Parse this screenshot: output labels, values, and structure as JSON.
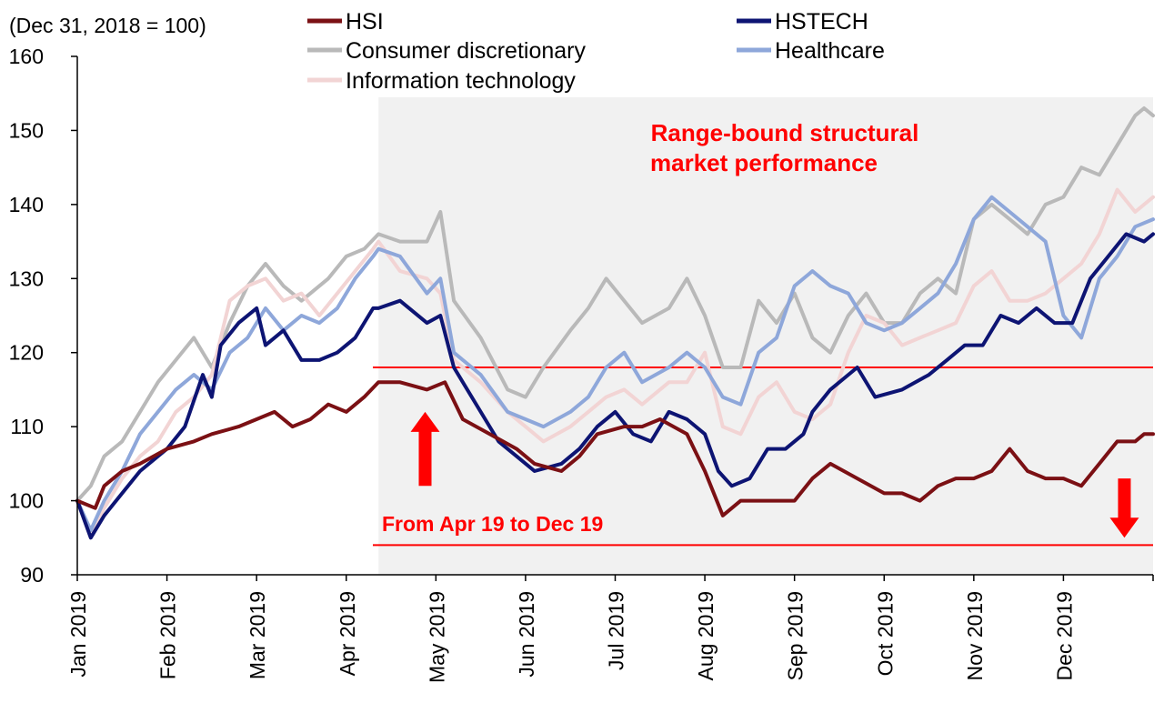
{
  "chart_data": {
    "type": "line",
    "unit_label": "(Dec 31, 2018 = 100)",
    "ylim": [
      90,
      160
    ],
    "y_ticks": [
      90,
      100,
      110,
      120,
      130,
      140,
      150,
      160
    ],
    "x_ticks": [
      "Jan 2019",
      "Feb 2019",
      "Mar 2019",
      "Apr 2019",
      "May 2019",
      "Jun 2019",
      "Jul 2019",
      "Aug 2019",
      "Sep 2019",
      "Oct 2019",
      "Nov 2019",
      "Dec 2019"
    ],
    "x_range": [
      0,
      12
    ],
    "grid": false,
    "legend": "top",
    "shaded_period": {
      "start": 3.36,
      "end": 12
    },
    "range_lines": [
      118,
      94
    ],
    "annotations": {
      "range_title": [
        "Range-bound structural",
        "market performance"
      ],
      "period": "From Apr 19 to Dec 19"
    },
    "arrows": [
      {
        "direction": "up",
        "x": 3.88,
        "y_from": 102,
        "y_to": 112
      },
      {
        "direction": "down",
        "x": 11.68,
        "y_from": 103,
        "y_to": 95
      }
    ],
    "series": [
      {
        "name": "HSI",
        "color": "#7b1014",
        "values": [
          [
            0,
            100
          ],
          [
            0.2,
            99
          ],
          [
            0.3,
            102
          ],
          [
            0.5,
            104
          ],
          [
            0.7,
            105
          ],
          [
            1,
            107
          ],
          [
            1.3,
            108
          ],
          [
            1.5,
            109
          ],
          [
            1.8,
            110
          ],
          [
            2,
            111
          ],
          [
            2.2,
            112
          ],
          [
            2.4,
            110
          ],
          [
            2.6,
            111
          ],
          [
            2.8,
            113
          ],
          [
            3,
            112
          ],
          [
            3.2,
            114
          ],
          [
            3.36,
            116
          ],
          [
            3.6,
            116
          ],
          [
            3.9,
            115
          ],
          [
            4.1,
            116
          ],
          [
            4.3,
            111
          ],
          [
            4.6,
            109
          ],
          [
            4.9,
            107
          ],
          [
            5.1,
            105
          ],
          [
            5.4,
            104
          ],
          [
            5.6,
            106
          ],
          [
            5.8,
            109
          ],
          [
            6.1,
            110
          ],
          [
            6.3,
            110
          ],
          [
            6.5,
            111
          ],
          [
            6.8,
            109
          ],
          [
            7,
            104
          ],
          [
            7.2,
            98
          ],
          [
            7.4,
            100
          ],
          [
            7.7,
            100
          ],
          [
            8,
            100
          ],
          [
            8.2,
            103
          ],
          [
            8.4,
            105
          ],
          [
            8.7,
            103
          ],
          [
            9,
            101
          ],
          [
            9.2,
            101
          ],
          [
            9.4,
            100
          ],
          [
            9.6,
            102
          ],
          [
            9.8,
            103
          ],
          [
            10,
            103
          ],
          [
            10.2,
            104
          ],
          [
            10.4,
            107
          ],
          [
            10.6,
            104
          ],
          [
            10.8,
            103
          ],
          [
            11,
            103
          ],
          [
            11.2,
            102
          ],
          [
            11.4,
            105
          ],
          [
            11.6,
            108
          ],
          [
            11.8,
            108
          ],
          [
            11.9,
            109
          ],
          [
            12,
            109
          ]
        ]
      },
      {
        "name": "HSTECH",
        "color": "#0d1473",
        "values": [
          [
            0,
            100
          ],
          [
            0.15,
            95
          ],
          [
            0.3,
            98
          ],
          [
            0.5,
            101
          ],
          [
            0.7,
            104
          ],
          [
            0.9,
            106
          ],
          [
            1,
            107
          ],
          [
            1.2,
            110
          ],
          [
            1.4,
            117
          ],
          [
            1.5,
            114
          ],
          [
            1.6,
            121
          ],
          [
            1.8,
            124
          ],
          [
            2,
            126
          ],
          [
            2.1,
            121
          ],
          [
            2.3,
            123
          ],
          [
            2.5,
            119
          ],
          [
            2.7,
            119
          ],
          [
            2.9,
            120
          ],
          [
            3.1,
            122
          ],
          [
            3.3,
            126
          ],
          [
            3.36,
            126
          ],
          [
            3.6,
            127
          ],
          [
            3.9,
            124
          ],
          [
            4.05,
            125
          ],
          [
            4.2,
            118
          ],
          [
            4.4,
            114
          ],
          [
            4.7,
            108
          ],
          [
            4.9,
            106
          ],
          [
            5.1,
            104
          ],
          [
            5.4,
            105
          ],
          [
            5.6,
            107
          ],
          [
            5.8,
            110
          ],
          [
            6,
            112
          ],
          [
            6.2,
            109
          ],
          [
            6.4,
            108
          ],
          [
            6.6,
            112
          ],
          [
            6.8,
            111
          ],
          [
            7,
            109
          ],
          [
            7.15,
            104
          ],
          [
            7.3,
            102
          ],
          [
            7.5,
            103
          ],
          [
            7.7,
            107
          ],
          [
            7.9,
            107
          ],
          [
            8.1,
            109
          ],
          [
            8.2,
            112
          ],
          [
            8.4,
            115
          ],
          [
            8.7,
            118
          ],
          [
            8.9,
            114
          ],
          [
            9.2,
            115
          ],
          [
            9.5,
            117
          ],
          [
            9.7,
            119
          ],
          [
            9.9,
            121
          ],
          [
            10.1,
            121
          ],
          [
            10.3,
            125
          ],
          [
            10.5,
            124
          ],
          [
            10.7,
            126
          ],
          [
            10.9,
            124
          ],
          [
            11.1,
            124
          ],
          [
            11.3,
            130
          ],
          [
            11.5,
            133
          ],
          [
            11.7,
            136
          ],
          [
            11.9,
            135
          ],
          [
            12,
            136
          ]
        ]
      },
      {
        "name": "Consumer discretionary",
        "color": "#b9b9b9",
        "values": [
          [
            0,
            100
          ],
          [
            0.15,
            102
          ],
          [
            0.3,
            106
          ],
          [
            0.5,
            108
          ],
          [
            0.7,
            112
          ],
          [
            0.9,
            116
          ],
          [
            1.1,
            119
          ],
          [
            1.3,
            122
          ],
          [
            1.5,
            118
          ],
          [
            1.7,
            124
          ],
          [
            1.9,
            129
          ],
          [
            2.1,
            132
          ],
          [
            2.3,
            129
          ],
          [
            2.5,
            127
          ],
          [
            2.8,
            130
          ],
          [
            3,
            133
          ],
          [
            3.2,
            134
          ],
          [
            3.36,
            136
          ],
          [
            3.6,
            135
          ],
          [
            3.9,
            135
          ],
          [
            4.05,
            139
          ],
          [
            4.2,
            127
          ],
          [
            4.5,
            122
          ],
          [
            4.8,
            115
          ],
          [
            5,
            114
          ],
          [
            5.2,
            118
          ],
          [
            5.5,
            123
          ],
          [
            5.7,
            126
          ],
          [
            5.9,
            130
          ],
          [
            6.1,
            127
          ],
          [
            6.3,
            124
          ],
          [
            6.6,
            126
          ],
          [
            6.8,
            130
          ],
          [
            7,
            125
          ],
          [
            7.2,
            118
          ],
          [
            7.4,
            118
          ],
          [
            7.6,
            127
          ],
          [
            7.8,
            124
          ],
          [
            8,
            128
          ],
          [
            8.2,
            122
          ],
          [
            8.4,
            120
          ],
          [
            8.6,
            125
          ],
          [
            8.8,
            128
          ],
          [
            9,
            124
          ],
          [
            9.2,
            124
          ],
          [
            9.4,
            128
          ],
          [
            9.6,
            130
          ],
          [
            9.8,
            128
          ],
          [
            10,
            138
          ],
          [
            10.2,
            140
          ],
          [
            10.4,
            138
          ],
          [
            10.6,
            136
          ],
          [
            10.8,
            140
          ],
          [
            11,
            141
          ],
          [
            11.2,
            145
          ],
          [
            11.4,
            144
          ],
          [
            11.6,
            148
          ],
          [
            11.8,
            152
          ],
          [
            11.9,
            153
          ],
          [
            12,
            152
          ]
        ]
      },
      {
        "name": "Healthcare",
        "color": "#8ea7da",
        "values": [
          [
            0,
            100
          ],
          [
            0.15,
            96
          ],
          [
            0.3,
            100
          ],
          [
            0.5,
            104
          ],
          [
            0.7,
            109
          ],
          [
            0.9,
            112
          ],
          [
            1.1,
            115
          ],
          [
            1.3,
            117
          ],
          [
            1.5,
            115
          ],
          [
            1.7,
            120
          ],
          [
            1.9,
            122
          ],
          [
            2.1,
            126
          ],
          [
            2.3,
            123
          ],
          [
            2.5,
            125
          ],
          [
            2.7,
            124
          ],
          [
            2.9,
            126
          ],
          [
            3.1,
            130
          ],
          [
            3.3,
            133
          ],
          [
            3.36,
            134
          ],
          [
            3.6,
            133
          ],
          [
            3.9,
            128
          ],
          [
            4.05,
            130
          ],
          [
            4.2,
            120
          ],
          [
            4.5,
            117
          ],
          [
            4.8,
            112
          ],
          [
            5,
            111
          ],
          [
            5.2,
            110
          ],
          [
            5.5,
            112
          ],
          [
            5.7,
            114
          ],
          [
            5.9,
            118
          ],
          [
            6.1,
            120
          ],
          [
            6.3,
            116
          ],
          [
            6.6,
            118
          ],
          [
            6.8,
            120
          ],
          [
            7,
            118
          ],
          [
            7.2,
            114
          ],
          [
            7.4,
            113
          ],
          [
            7.6,
            120
          ],
          [
            7.8,
            122
          ],
          [
            8,
            129
          ],
          [
            8.2,
            131
          ],
          [
            8.4,
            129
          ],
          [
            8.6,
            128
          ],
          [
            8.8,
            124
          ],
          [
            9,
            123
          ],
          [
            9.2,
            124
          ],
          [
            9.4,
            126
          ],
          [
            9.6,
            128
          ],
          [
            9.8,
            132
          ],
          [
            10,
            138
          ],
          [
            10.2,
            141
          ],
          [
            10.4,
            139
          ],
          [
            10.6,
            137
          ],
          [
            10.8,
            135
          ],
          [
            11,
            125
          ],
          [
            11.2,
            122
          ],
          [
            11.4,
            130
          ],
          [
            11.6,
            133
          ],
          [
            11.8,
            137
          ],
          [
            12,
            138
          ]
        ]
      },
      {
        "name": "Information technology",
        "color": "#f2d4d4",
        "values": [
          [
            0,
            100
          ],
          [
            0.15,
            95
          ],
          [
            0.3,
            99
          ],
          [
            0.5,
            103
          ],
          [
            0.7,
            106
          ],
          [
            0.9,
            108
          ],
          [
            1.1,
            112
          ],
          [
            1.3,
            114
          ],
          [
            1.5,
            117
          ],
          [
            1.7,
            127
          ],
          [
            1.9,
            129
          ],
          [
            2.1,
            130
          ],
          [
            2.3,
            127
          ],
          [
            2.5,
            128
          ],
          [
            2.7,
            125
          ],
          [
            2.9,
            128
          ],
          [
            3.1,
            131
          ],
          [
            3.3,
            134
          ],
          [
            3.36,
            135
          ],
          [
            3.6,
            131
          ],
          [
            3.9,
            130
          ],
          [
            4.05,
            128
          ],
          [
            4.2,
            119
          ],
          [
            4.5,
            116
          ],
          [
            4.8,
            112
          ],
          [
            5,
            110
          ],
          [
            5.2,
            108
          ],
          [
            5.5,
            110
          ],
          [
            5.7,
            112
          ],
          [
            5.9,
            114
          ],
          [
            6.1,
            115
          ],
          [
            6.3,
            113
          ],
          [
            6.6,
            116
          ],
          [
            6.8,
            116
          ],
          [
            7,
            120
          ],
          [
            7.2,
            110
          ],
          [
            7.4,
            109
          ],
          [
            7.6,
            114
          ],
          [
            7.8,
            116
          ],
          [
            8,
            112
          ],
          [
            8.2,
            111
          ],
          [
            8.4,
            113
          ],
          [
            8.6,
            120
          ],
          [
            8.8,
            125
          ],
          [
            9,
            124
          ],
          [
            9.2,
            121
          ],
          [
            9.4,
            122
          ],
          [
            9.6,
            123
          ],
          [
            9.8,
            124
          ],
          [
            10,
            129
          ],
          [
            10.2,
            131
          ],
          [
            10.4,
            127
          ],
          [
            10.6,
            127
          ],
          [
            10.8,
            128
          ],
          [
            11,
            130
          ],
          [
            11.2,
            132
          ],
          [
            11.4,
            136
          ],
          [
            11.6,
            142
          ],
          [
            11.8,
            139
          ],
          [
            12,
            141
          ]
        ]
      }
    ]
  }
}
